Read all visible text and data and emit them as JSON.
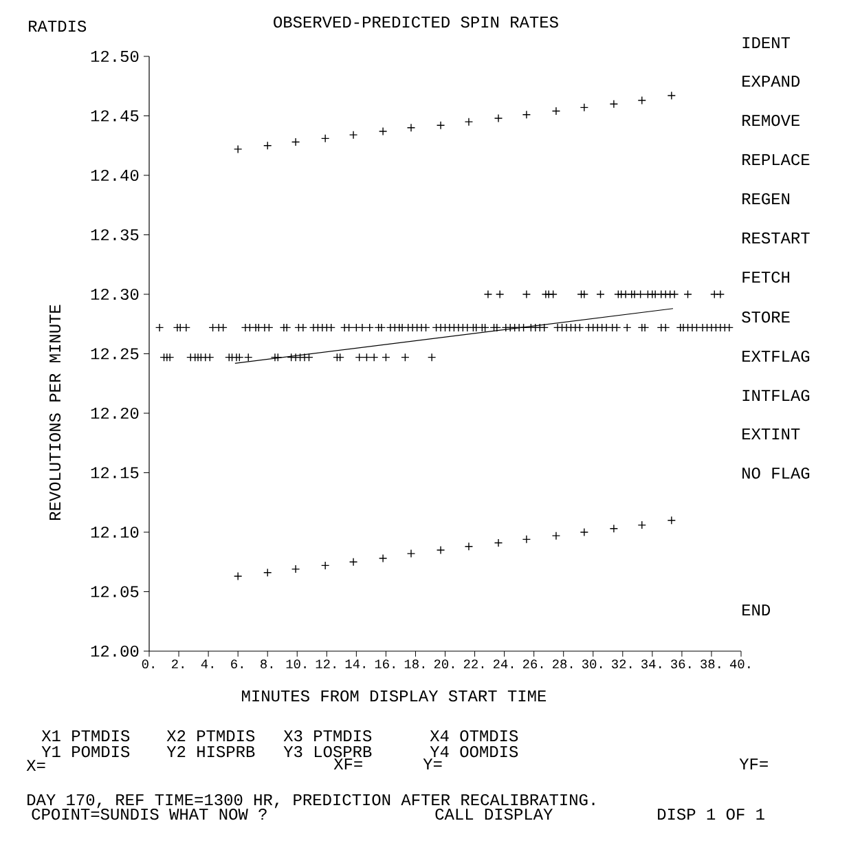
{
  "chart_data": {
    "type": "scatter",
    "title": "OBSERVED-PREDICTED SPIN RATES",
    "xlabel": "MINUTES FROM DISPLAY START TIME",
    "ylabel": "REVOLUTIONS PER MINUTE",
    "xlim": [
      0,
      40
    ],
    "ylim": [
      12.0,
      12.5
    ],
    "xticks": [
      {
        "value": 0,
        "label": "0."
      },
      {
        "value": 2,
        "label": "2."
      },
      {
        "value": 4,
        "label": "4."
      },
      {
        "value": 6,
        "label": "6."
      },
      {
        "value": 8,
        "label": "8."
      },
      {
        "value": 10,
        "label": "10."
      },
      {
        "value": 12,
        "label": "12."
      },
      {
        "value": 14,
        "label": "14."
      },
      {
        "value": 16,
        "label": "16."
      },
      {
        "value": 18,
        "label": "18."
      },
      {
        "value": 20,
        "label": "20."
      },
      {
        "value": 22,
        "label": "22."
      },
      {
        "value": 24,
        "label": "24."
      },
      {
        "value": 26,
        "label": "26."
      },
      {
        "value": 28,
        "label": "28."
      },
      {
        "value": 30,
        "label": "30."
      },
      {
        "value": 32,
        "label": "32."
      },
      {
        "value": 34,
        "label": "34."
      },
      {
        "value": 36,
        "label": "36."
      },
      {
        "value": 38,
        "label": "38."
      },
      {
        "value": 40,
        "label": "40."
      }
    ],
    "yticks": [
      {
        "value": 12.0,
        "label": "12.00"
      },
      {
        "value": 12.05,
        "label": "12.05"
      },
      {
        "value": 12.1,
        "label": "12.10"
      },
      {
        "value": 12.15,
        "label": "12.15"
      },
      {
        "value": 12.2,
        "label": "12.20"
      },
      {
        "value": 12.25,
        "label": "12.25"
      },
      {
        "value": 12.3,
        "label": "12.30"
      },
      {
        "value": 12.35,
        "label": "12.35"
      },
      {
        "value": 12.4,
        "label": "12.40"
      },
      {
        "value": 12.45,
        "label": "12.45"
      },
      {
        "value": 12.5,
        "label": "12.50"
      }
    ],
    "marker": "cross",
    "series": [
      {
        "color": "#000000",
        "x": [
          0.7,
          1.9,
          2.1,
          2.5,
          4.3,
          4.7,
          5.0,
          6.5,
          6.8,
          7.2,
          7.4,
          7.8,
          8.1,
          9.1,
          9.3,
          10.1,
          10.4,
          11.1,
          11.4,
          11.7,
          12.0,
          12.3,
          13.2,
          13.5,
          14.0,
          14.4,
          14.9,
          15.5,
          15.7,
          16.3,
          16.6,
          16.9,
          17.1,
          17.5,
          17.8,
          18.1,
          18.4,
          18.7,
          19.4,
          19.7,
          20.0,
          20.3,
          20.6,
          20.9,
          21.2,
          21.5,
          21.9,
          22.1,
          22.5,
          22.7,
          23.3,
          23.5,
          24.1,
          24.4,
          24.7,
          25.0,
          25.3,
          25.8,
          26.1,
          26.4,
          26.7,
          27.6,
          27.9,
          28.2,
          28.5,
          28.8,
          29.1,
          29.7,
          30.0,
          30.3,
          30.6,
          30.9,
          31.3,
          31.6,
          32.3,
          33.3,
          33.5,
          34.6,
          34.9,
          35.9,
          36.1,
          36.4,
          36.7,
          37.0,
          37.4,
          37.7,
          38.0,
          38.3,
          38.6,
          38.9,
          39.2,
          1.0,
          1.2,
          1.4,
          2.8,
          3.1,
          3.3,
          3.5,
          3.8,
          4.1,
          5.4,
          5.6,
          5.9,
          6.1,
          6.7,
          8.5,
          8.7,
          9.6,
          9.9,
          10.2,
          10.5,
          10.8,
          12.7,
          12.9,
          14.2,
          14.7,
          15.2,
          16.0,
          17.3,
          19.1,
          22.9,
          23.7,
          25.5,
          26.8,
          27.0,
          27.3,
          29.2,
          29.4,
          30.5,
          31.7,
          31.9,
          32.2,
          32.6,
          32.8,
          33.2,
          33.7,
          34.0,
          34.2,
          34.6,
          34.9,
          35.2,
          35.5,
          36.4,
          38.2,
          38.6
        ],
        "values": [
          12.272,
          12.272,
          12.272,
          12.272,
          12.272,
          12.272,
          12.272,
          12.272,
          12.272,
          12.272,
          12.272,
          12.272,
          12.272,
          12.272,
          12.272,
          12.272,
          12.272,
          12.272,
          12.272,
          12.272,
          12.272,
          12.272,
          12.272,
          12.272,
          12.272,
          12.272,
          12.272,
          12.272,
          12.272,
          12.272,
          12.272,
          12.272,
          12.272,
          12.272,
          12.272,
          12.272,
          12.272,
          12.272,
          12.272,
          12.272,
          12.272,
          12.272,
          12.272,
          12.272,
          12.272,
          12.272,
          12.272,
          12.272,
          12.272,
          12.272,
          12.272,
          12.272,
          12.272,
          12.272,
          12.272,
          12.272,
          12.272,
          12.272,
          12.272,
          12.272,
          12.272,
          12.272,
          12.272,
          12.272,
          12.272,
          12.272,
          12.272,
          12.272,
          12.272,
          12.272,
          12.272,
          12.272,
          12.272,
          12.272,
          12.272,
          12.272,
          12.272,
          12.272,
          12.272,
          12.272,
          12.272,
          12.272,
          12.272,
          12.272,
          12.272,
          12.272,
          12.272,
          12.272,
          12.272,
          12.272,
          12.272,
          12.247,
          12.247,
          12.247,
          12.247,
          12.247,
          12.247,
          12.247,
          12.247,
          12.247,
          12.247,
          12.247,
          12.247,
          12.247,
          12.247,
          12.247,
          12.247,
          12.247,
          12.247,
          12.247,
          12.247,
          12.247,
          12.247,
          12.247,
          12.247,
          12.247,
          12.247,
          12.247,
          12.247,
          12.247,
          12.3,
          12.3,
          12.3,
          12.3,
          12.3,
          12.3,
          12.3,
          12.3,
          12.3,
          12.3,
          12.3,
          12.3,
          12.3,
          12.3,
          12.3,
          12.3,
          12.3,
          12.3,
          12.3,
          12.3,
          12.3,
          12.3,
          12.3,
          12.3,
          12.3
        ]
      },
      {
        "color": "#000000",
        "x": [
          6.0,
          8.0,
          9.9,
          11.9,
          13.8,
          15.8,
          17.7,
          19.7,
          21.6,
          23.6,
          25.5,
          27.5,
          29.4,
          31.4,
          33.3,
          35.3
        ],
        "values": [
          12.422,
          12.425,
          12.428,
          12.431,
          12.434,
          12.437,
          12.44,
          12.442,
          12.445,
          12.448,
          12.451,
          12.454,
          12.457,
          12.46,
          12.463,
          12.467
        ]
      },
      {
        "color": "#000000",
        "x": [
          6.0,
          8.0,
          9.9,
          11.9,
          13.8,
          15.8,
          17.7,
          19.7,
          21.6,
          23.6,
          25.5,
          27.5,
          29.4,
          31.4,
          33.3,
          35.3
        ],
        "values": [
          12.063,
          12.066,
          12.069,
          12.072,
          12.075,
          12.078,
          12.082,
          12.085,
          12.088,
          12.091,
          12.094,
          12.097,
          12.1,
          12.103,
          12.106,
          12.11
        ]
      },
      {
        "type": "line",
        "color": "#000000",
        "marker": "none",
        "line_style": "solid",
        "x": [
          5.8,
          35.4
        ],
        "values": [
          12.242,
          12.288
        ]
      }
    ],
    "annotations": [
      "RATDIS",
      "IDENT",
      "EXPAND",
      "REMOVE",
      "REPLACE",
      "REGEN",
      "RESTART",
      "FETCH",
      "STORE",
      "EXTFLAG",
      "INTFLAG",
      "EXTINT",
      "NO FLAG",
      "END",
      "X1 PTMDIS",
      "Y1 POMDIS",
      "X2 PTMDIS",
      "Y2 HISPRB",
      "X3 PTMDIS",
      "Y3 LOSPRB",
      "X4 OTMDIS",
      "Y4 OOMDIS",
      "X=",
      "XF=",
      "Y=",
      "YF=",
      "DAY 170, REF TIME=1300 HR, PREDICTION AFTER RECALIBRATING.",
      "CPOINT=SUNDIS WHAT NOW ?",
      "CALL DISPLAY",
      "DISP 1 OF 1"
    ]
  }
}
